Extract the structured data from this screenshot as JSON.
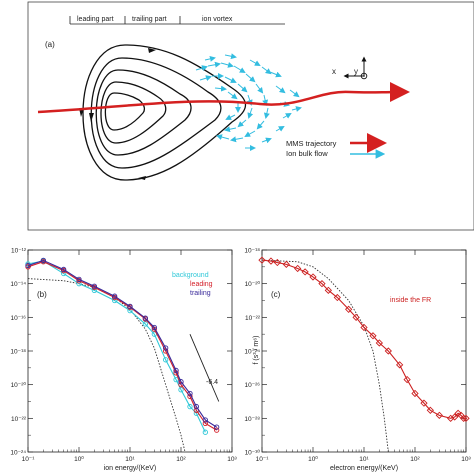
{
  "panel_a": {
    "label": "(a)",
    "region_labels": [
      "leading part",
      "trailing part",
      "ion vortex"
    ],
    "axis_x": "x",
    "axis_y": "y",
    "legend": [
      {
        "label": "MMS trajectory",
        "color": "#d42020"
      },
      {
        "label": "Ion bulk flow",
        "color": "#33bde0"
      }
    ]
  },
  "chart_data": [
    {
      "type": "line",
      "panel_label": "(b)",
      "xlabel": "ion energy/(KeV)",
      "ylabel": "",
      "x_scale": "log",
      "y_scale": "log",
      "xlim": [
        0.1,
        1000
      ],
      "ylim": [
        1e-24,
        1e-12
      ],
      "x_ticks": [
        "10⁻¹",
        "10⁰",
        "10¹",
        "10²",
        "10³"
      ],
      "y_ticks": [
        "10⁻¹²",
        "10⁻¹⁴",
        "10⁻¹⁶",
        "10⁻¹⁸",
        "10⁻²⁰",
        "10⁻²²",
        "10⁻²⁴"
      ],
      "slope_label": "-6.4",
      "series": [
        {
          "name": "background",
          "color": "#30c8d8",
          "x": [
            0.1,
            0.2,
            0.5,
            1,
            2,
            5,
            10,
            20,
            30,
            50,
            80,
            100,
            150,
            200,
            300
          ],
          "y": [
            1.5e-13,
            2.2e-13,
            4e-14,
            1e-14,
            4e-15,
            1e-15,
            2.5e-16,
            4e-17,
            1e-17,
            3e-19,
            2e-20,
            5e-21,
            5e-22,
            2e-22,
            1.5e-23
          ]
        },
        {
          "name": "leading",
          "color": "#d4202a",
          "x": [
            0.1,
            0.2,
            0.5,
            1,
            2,
            5,
            10,
            20,
            30,
            50,
            80,
            100,
            150,
            200,
            300,
            500
          ],
          "y": [
            1e-13,
            2e-13,
            6e-14,
            1.5e-14,
            6e-15,
            1.5e-15,
            4e-16,
            8e-17,
            2e-17,
            1e-18,
            5e-20,
            1e-20,
            2e-21,
            3e-22,
            5e-23,
            2e-23
          ]
        },
        {
          "name": "trailing",
          "color": "#3a2a9a",
          "x": [
            0.1,
            0.2,
            0.5,
            1,
            2,
            5,
            10,
            20,
            30,
            50,
            80,
            100,
            150,
            200,
            300,
            500
          ],
          "y": [
            1.2e-13,
            2.4e-13,
            7e-14,
            1.8e-14,
            7e-15,
            1.8e-15,
            4.5e-16,
            9e-17,
            2.5e-17,
            1.5e-18,
            7e-20,
            1.5e-20,
            3e-21,
            5e-22,
            8e-23,
            3e-23
          ]
        }
      ],
      "fit_line": {
        "style": "dotted",
        "x": [
          0.1,
          0.5,
          1,
          2,
          5,
          10,
          20,
          30,
          50,
          80,
          100,
          120
        ],
        "y": [
          2e-14,
          1.5e-14,
          1e-14,
          6e-15,
          1.5e-15,
          3e-16,
          2e-17,
          1.5e-18,
          1e-20,
          1e-22,
          1e-23,
          1e-24
        ]
      },
      "power_law_line": {
        "x": [
          150,
          550
        ],
        "y": [
          1e-17,
          1e-21
        ]
      }
    },
    {
      "type": "line",
      "panel_label": "(c)",
      "annotation": "inside the FR",
      "xlabel": "electron energy/(KeV)",
      "ylabel": "f (s³ / m⁶)",
      "x_scale": "log",
      "y_scale": "log",
      "xlim": [
        0.1,
        1000
      ],
      "ylim": [
        1e-30,
        1e-18
      ],
      "x_ticks": [
        "10⁻¹",
        "10⁰",
        "10¹",
        "10²",
        "10³"
      ],
      "y_ticks": [
        "10⁻¹⁸",
        "10⁻²⁰",
        "10⁻²²",
        "10⁻²⁴",
        "10⁻²⁶",
        "10⁻²⁸",
        "10⁻³⁰"
      ],
      "series": [
        {
          "name": "inside the FR",
          "color": "#cc2020",
          "x": [
            0.1,
            0.15,
            0.2,
            0.3,
            0.5,
            0.7,
            1,
            1.5,
            2,
            3,
            5,
            7,
            10,
            15,
            20,
            30,
            50,
            70,
            100,
            150,
            200,
            300,
            500,
            600,
            700,
            800,
            900,
            1000
          ],
          "y": [
            2.5e-19,
            2.2e-19,
            1.8e-19,
            1.4e-19,
            8e-20,
            5e-20,
            2.5e-20,
            1e-20,
            4e-21,
            1.5e-21,
            3e-22,
            1e-22,
            2.5e-23,
            8e-24,
            3e-24,
            1e-24,
            1.5e-25,
            2e-26,
            3e-27,
            8e-28,
            3e-28,
            1.5e-28,
            1e-28,
            1.2e-28,
            2e-28,
            1.5e-28,
            1e-28,
            1e-28
          ]
        }
      ],
      "fit_line": {
        "style": "dotted",
        "x": [
          0.1,
          0.5,
          1,
          2,
          5,
          10,
          15,
          20,
          25,
          30
        ],
        "y": [
          2.5e-19,
          2e-19,
          1e-19,
          2e-20,
          1e-21,
          3e-23,
          1e-24,
          1e-26,
          1e-28,
          1e-30
        ]
      }
    }
  ]
}
